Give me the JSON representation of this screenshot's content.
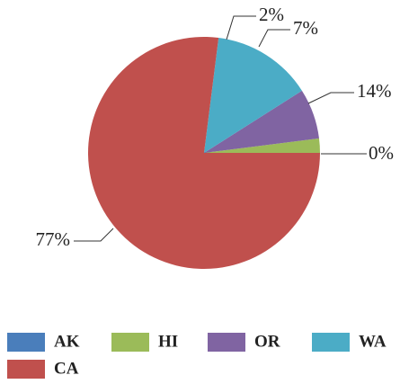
{
  "chart_data": {
    "type": "pie",
    "categories": [
      "AK",
      "HI",
      "OR",
      "WA",
      "CA"
    ],
    "values": [
      0,
      2,
      7,
      14,
      77
    ],
    "value_labels": [
      "0%",
      "2%",
      "7%",
      "14%",
      "77%"
    ],
    "colors": [
      "#4a7ebb",
      "#9bbb59",
      "#8064a2",
      "#4bacc6",
      "#c0504d"
    ],
    "legend": "bottom"
  }
}
